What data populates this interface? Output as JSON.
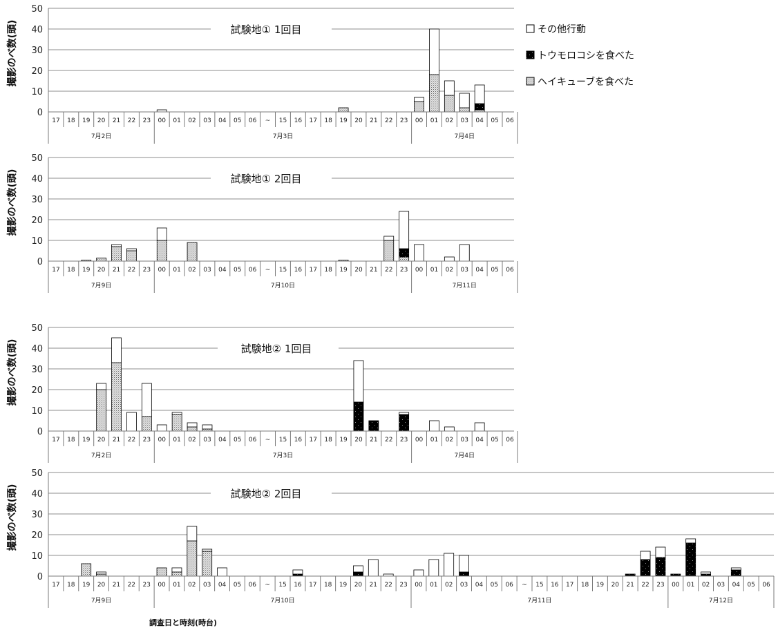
{
  "xlabel": "調査日と時刻(時台)",
  "legend": [
    {
      "key": "other",
      "label": "その他行動",
      "fill": "#ffffff"
    },
    {
      "key": "corn",
      "label": "トウモロコシを食べた",
      "fill": "#000000"
    },
    {
      "key": "hay",
      "label": "ヘイキューブを食べた",
      "fill": "#d8d8d8"
    }
  ],
  "chart_data": [
    {
      "type": "bar",
      "stacked": true,
      "title": "試験地① 1回目",
      "ylabel": "撮影のべ数(頭)",
      "ylim": [
        0,
        50
      ],
      "yticks": [
        0,
        10,
        20,
        30,
        40,
        50
      ],
      "categories": [
        "17",
        "18",
        "19",
        "20",
        "21",
        "22",
        "23",
        "00",
        "01",
        "02",
        "03",
        "04",
        "05",
        "06",
        "~",
        "15",
        "16",
        "17",
        "18",
        "19",
        "20",
        "21",
        "22",
        "23",
        "00",
        "01",
        "02",
        "03",
        "04",
        "05",
        "06"
      ],
      "groups": [
        {
          "label": "7月2日",
          "start": 0,
          "end": 6
        },
        {
          "label": "7月3日",
          "start": 7,
          "end": 23
        },
        {
          "label": "7月4日",
          "start": 24,
          "end": 30
        }
      ],
      "series": [
        {
          "name": "ヘイキューブを食べた",
          "values": [
            0,
            0,
            0,
            0,
            0,
            0,
            0,
            0,
            0,
            0,
            0,
            0,
            0,
            0,
            0,
            0,
            0,
            0,
            0,
            2,
            0,
            0,
            0,
            0,
            5,
            18,
            8,
            2,
            1,
            0,
            0
          ]
        },
        {
          "name": "トウモロコシを食べた",
          "values": [
            0,
            0,
            0,
            0,
            0,
            0,
            0,
            0,
            0,
            0,
            0,
            0,
            0,
            0,
            0,
            0,
            0,
            0,
            0,
            0,
            0,
            0,
            0,
            0,
            0,
            0,
            0,
            0,
            3,
            0,
            0
          ]
        },
        {
          "name": "その他行動",
          "values": [
            0,
            0,
            0,
            0,
            0,
            0,
            0,
            1,
            0,
            0,
            0,
            0,
            0,
            0,
            0,
            0,
            0,
            0,
            0,
            0,
            0,
            0,
            0,
            0,
            2,
            22,
            7,
            7,
            9,
            0,
            0
          ]
        }
      ]
    },
    {
      "type": "bar",
      "stacked": true,
      "title": "試験地① 2回目",
      "ylabel": "撮影のべ数(頭)",
      "ylim": [
        0,
        50
      ],
      "yticks": [
        0,
        10,
        20,
        30,
        40,
        50
      ],
      "categories": [
        "17",
        "18",
        "19",
        "20",
        "21",
        "22",
        "23",
        "00",
        "01",
        "02",
        "03",
        "04",
        "05",
        "06",
        "~",
        "15",
        "16",
        "17",
        "18",
        "19",
        "20",
        "21",
        "22",
        "23",
        "00",
        "01",
        "02",
        "03",
        "04",
        "05",
        "06"
      ],
      "groups": [
        {
          "label": "7月9日",
          "start": 0,
          "end": 6
        },
        {
          "label": "7月10日",
          "start": 7,
          "end": 23
        },
        {
          "label": "7月11日",
          "start": 24,
          "end": 30
        }
      ],
      "series": [
        {
          "name": "ヘイキューブを食べた",
          "values": [
            0,
            0,
            0.5,
            1.5,
            7,
            5,
            0,
            10,
            0,
            9,
            0,
            0,
            0,
            0,
            0,
            0,
            0,
            0,
            0,
            0.5,
            0,
            0,
            10,
            2,
            0,
            0,
            0,
            0,
            0,
            0,
            0
          ]
        },
        {
          "name": "トウモロコシを食べた",
          "values": [
            0,
            0,
            0,
            0,
            0,
            0,
            0,
            0,
            0,
            0,
            0,
            0,
            0,
            0,
            0,
            0,
            0,
            0,
            0,
            0,
            0,
            0,
            0,
            4,
            0,
            0,
            0,
            0,
            0,
            0,
            0
          ]
        },
        {
          "name": "その他行動",
          "values": [
            0,
            0,
            0,
            0,
            1,
            1,
            0,
            6,
            0,
            0,
            0,
            0,
            0,
            0,
            0,
            0,
            0,
            0,
            0,
            0,
            0,
            0,
            2,
            18,
            8,
            0,
            2,
            8,
            0,
            0,
            0
          ]
        }
      ]
    },
    {
      "type": "bar",
      "stacked": true,
      "title": "試験地② 1回目",
      "ylabel": "撮影のべ数(頭)",
      "ylim": [
        0,
        50
      ],
      "yticks": [
        0,
        10,
        20,
        30,
        40,
        50
      ],
      "categories": [
        "17",
        "18",
        "19",
        "20",
        "21",
        "22",
        "23",
        "00",
        "01",
        "02",
        "03",
        "04",
        "05",
        "06",
        "~",
        "15",
        "16",
        "17",
        "18",
        "19",
        "20",
        "21",
        "22",
        "23",
        "00",
        "01",
        "02",
        "03",
        "04",
        "05",
        "06"
      ],
      "groups": [
        {
          "label": "7月2日",
          "start": 0,
          "end": 6
        },
        {
          "label": "7月3日",
          "start": 7,
          "end": 23
        },
        {
          "label": "7月4日",
          "start": 24,
          "end": 30
        }
      ],
      "series": [
        {
          "name": "ヘイキューブを食べた",
          "values": [
            0,
            0,
            0,
            20,
            33,
            0,
            7,
            0,
            8,
            2,
            1,
            0,
            0,
            0,
            0,
            0,
            0,
            0,
            0,
            0,
            0,
            0,
            0,
            0,
            0,
            0,
            0,
            0,
            0,
            0,
            0
          ]
        },
        {
          "name": "トウモロコシを食べた",
          "values": [
            0,
            0,
            0,
            0,
            0,
            0,
            0,
            0,
            0,
            0,
            0,
            0,
            0,
            0,
            0,
            0,
            0,
            0,
            0,
            0,
            14,
            5,
            0,
            8,
            0,
            0,
            0,
            0,
            0,
            0,
            0
          ]
        },
        {
          "name": "その他行動",
          "values": [
            0,
            0,
            0,
            3,
            12,
            9,
            16,
            3,
            1,
            2,
            2,
            0,
            0,
            0,
            0,
            0,
            0,
            0,
            0,
            0,
            20,
            0,
            0,
            1,
            0,
            5,
            2,
            0,
            4,
            0,
            0
          ]
        }
      ]
    },
    {
      "type": "bar",
      "stacked": true,
      "title": "試験地② 2回目",
      "ylabel": "撮影のべ数(頭)",
      "ylim": [
        0,
        50
      ],
      "yticks": [
        0,
        10,
        20,
        30,
        40,
        50
      ],
      "categories": [
        "17",
        "18",
        "19",
        "20",
        "21",
        "22",
        "23",
        "00",
        "01",
        "02",
        "03",
        "04",
        "05",
        "06",
        "~",
        "15",
        "16",
        "17",
        "18",
        "19",
        "20",
        "21",
        "22",
        "23",
        "00",
        "01",
        "02",
        "03",
        "04",
        "05",
        "06",
        "~",
        "15",
        "16",
        "17",
        "18",
        "19",
        "20",
        "21",
        "22",
        "23",
        "00",
        "01",
        "02",
        "03",
        "04",
        "05",
        "06"
      ],
      "groups": [
        {
          "label": "7月9日",
          "start": 0,
          "end": 6
        },
        {
          "label": "7月10日",
          "start": 7,
          "end": 23
        },
        {
          "label": "7月11日",
          "start": 24,
          "end": 40
        },
        {
          "label": "7月12日",
          "start": 41,
          "end": 47
        }
      ],
      "series": [
        {
          "name": "ヘイキューブを食べた",
          "values": [
            0,
            0,
            6,
            1,
            0,
            0,
            0,
            4,
            2,
            17,
            12,
            0,
            0,
            0,
            0,
            0,
            0,
            0,
            0,
            0,
            0,
            0,
            0,
            0,
            0,
            0,
            0,
            0,
            0,
            0,
            0,
            0,
            0,
            0,
            0,
            0,
            0,
            0,
            0,
            0,
            0,
            0,
            0,
            0,
            0,
            0,
            0,
            0
          ]
        },
        {
          "name": "トウモロコシを食べた",
          "values": [
            0,
            0,
            0,
            0,
            0,
            0,
            0,
            0,
            0,
            0,
            0,
            0,
            0,
            0,
            0,
            0,
            1,
            0,
            0,
            0,
            2,
            0,
            0,
            0,
            0,
            0,
            0,
            2,
            0,
            0,
            0,
            0,
            0,
            0,
            0,
            0,
            0,
            0,
            1,
            8,
            9,
            1,
            16,
            1,
            0,
            3,
            0,
            0
          ]
        },
        {
          "name": "その他行動",
          "values": [
            0,
            0,
            0,
            1,
            0,
            0,
            0,
            0,
            2,
            7,
            1,
            4,
            0,
            0,
            0,
            0,
            2,
            0,
            0,
            0,
            3,
            8,
            1,
            0,
            3,
            8,
            11,
            8,
            0,
            0,
            0,
            0,
            0,
            0,
            0,
            0,
            0,
            0,
            0,
            4,
            5,
            0,
            2,
            1,
            0,
            1,
            0,
            0
          ]
        }
      ]
    }
  ]
}
